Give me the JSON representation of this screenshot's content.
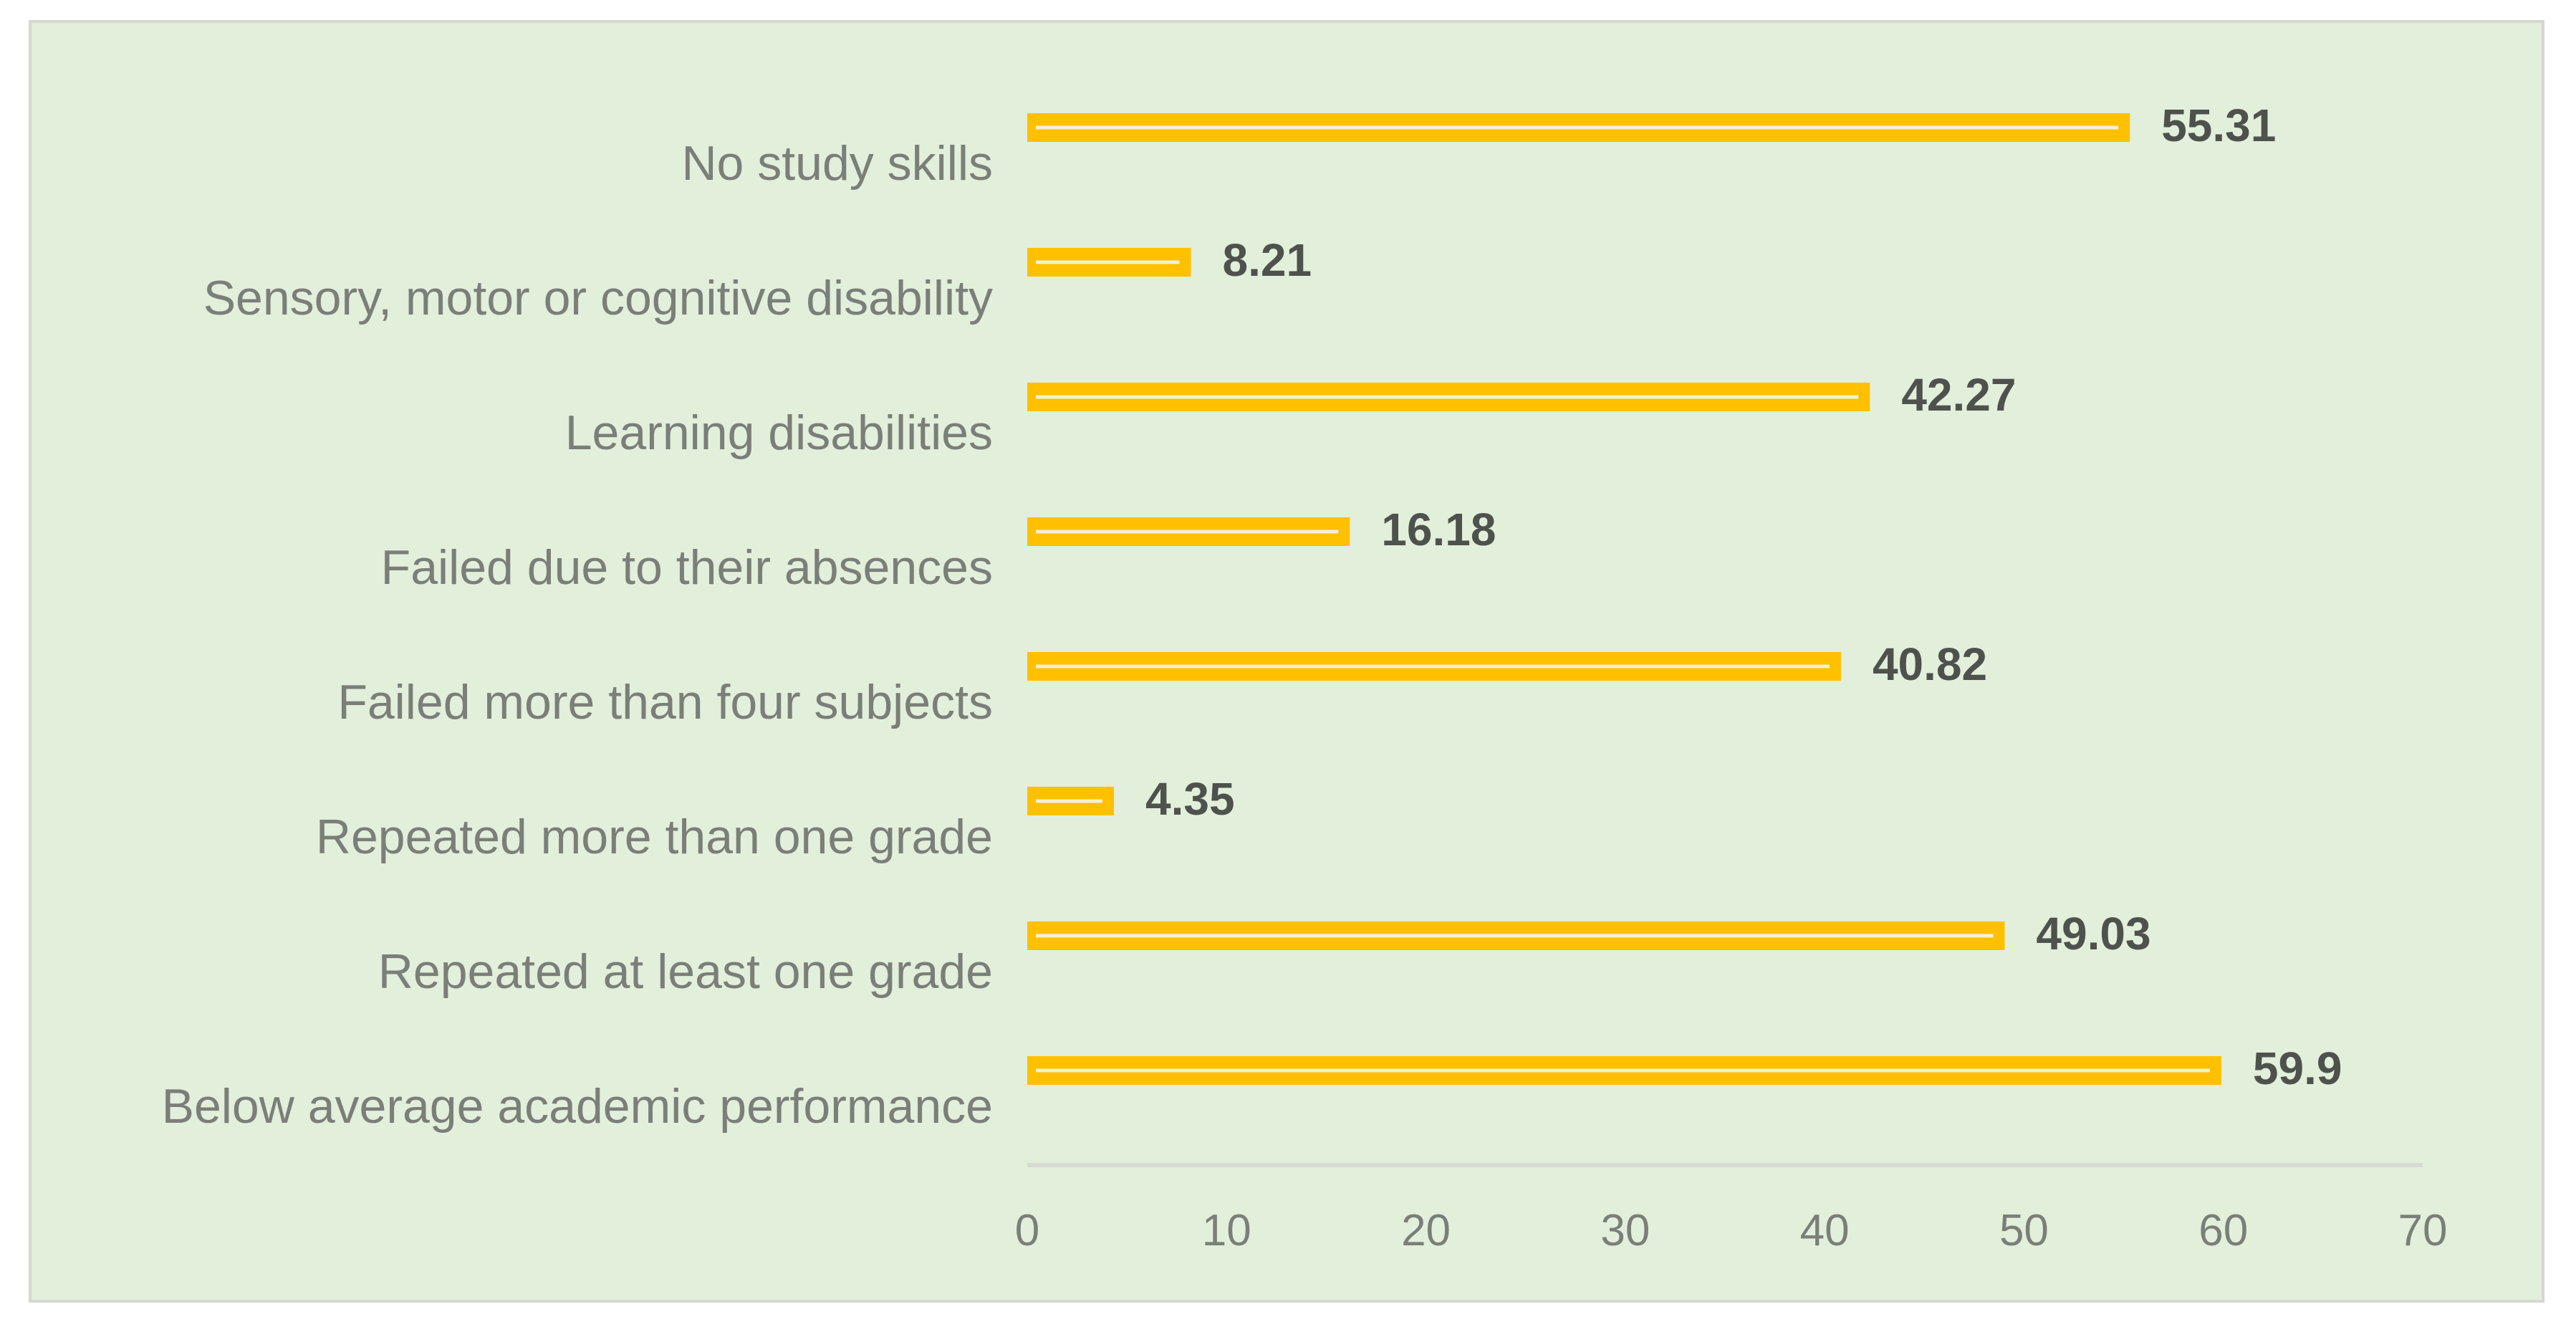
{
  "chart_data": {
    "type": "bar",
    "orientation": "horizontal",
    "title": "",
    "xlabel": "",
    "ylabel": "",
    "categories": [
      "No study skills",
      "Sensory, motor or cognitive disability",
      "Learning disabilities",
      "Failed due to their absences",
      "Failed more than four subjects",
      "Repeated more than one grade",
      "Repeated at least one grade",
      "Below average academic performance"
    ],
    "values": [
      55.31,
      8.21,
      42.27,
      16.18,
      40.82,
      4.35,
      49.03,
      59.9
    ],
    "value_labels": [
      "55.31",
      "8.21",
      "42.27",
      "16.18",
      "40.82",
      "4.35",
      "49.03",
      "59.9"
    ],
    "xlim": [
      0,
      70
    ],
    "xticks": [
      "0",
      "10",
      "20",
      "30",
      "40",
      "50",
      "60",
      "70"
    ],
    "grid": false,
    "legend": "none",
    "colors": {
      "bar": "#ffc000",
      "bar_inner_line": "#f3f1d6",
      "plot_background": "#e2efda",
      "axis_line": "#d6dbd3"
    }
  }
}
